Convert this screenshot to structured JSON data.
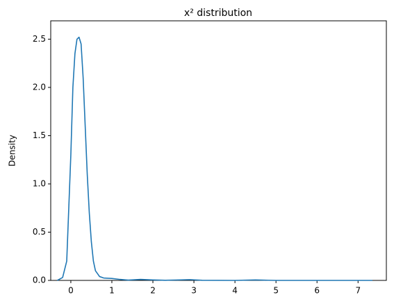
{
  "chart_data": {
    "type": "line",
    "title": "x² distribution",
    "y_label": "Density",
    "x": [
      -0.33,
      -0.2,
      -0.1,
      0.0,
      0.05,
      0.1,
      0.15,
      0.2,
      0.25,
      0.3,
      0.35,
      0.4,
      0.45,
      0.5,
      0.55,
      0.6,
      0.7,
      0.8,
      1.0,
      1.2,
      1.4,
      1.7,
      2.0,
      2.3,
      2.9,
      3.2,
      4.0,
      4.5,
      5.0,
      6.0,
      7.0,
      7.35
    ],
    "series": [
      {
        "name": "Density",
        "color": "#1f77b4",
        "values": [
          0.0,
          0.03,
          0.2,
          1.3,
          2.0,
          2.35,
          2.5,
          2.52,
          2.45,
          2.1,
          1.6,
          1.1,
          0.7,
          0.4,
          0.2,
          0.1,
          0.04,
          0.025,
          0.02,
          0.01,
          0.003,
          0.01,
          0.005,
          0.001,
          0.008,
          0.001,
          0.0,
          0.005,
          0.0,
          0.0,
          0.0,
          0.0
        ]
      }
    ],
    "xlim": [
      -0.49,
      7.69
    ],
    "ylim": [
      0,
      2.69
    ],
    "xticks": [
      0,
      1,
      2,
      3,
      4,
      5,
      6,
      7
    ],
    "yticks": [
      {
        "value": 0,
        "label": "0.0"
      },
      0.5,
      {
        "value": 1,
        "label": "1.0"
      },
      1.5,
      {
        "value": 2,
        "label": "2.0"
      },
      2.5
    ],
    "grid": false
  }
}
